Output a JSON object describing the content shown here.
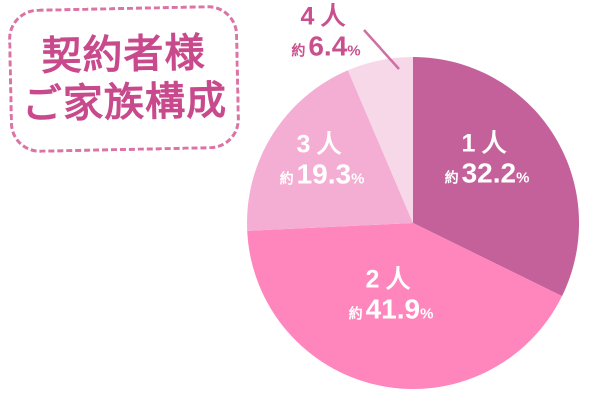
{
  "title": {
    "line1": "契約者様",
    "line2": "ご家族構成"
  },
  "chart_data": {
    "type": "pie",
    "title": "契約者様ご家族構成",
    "approx_prefix": "約",
    "unit": "%",
    "start_angle_deg": 0,
    "direction": "clockwise",
    "legend_position": "none",
    "slices": [
      {
        "label": "1人",
        "value": 32.2,
        "display_value": "32.2",
        "color": "#c4619b",
        "label_placement": "inside"
      },
      {
        "label": "2人",
        "value": 41.9,
        "display_value": "41.9",
        "color": "#ff86bd",
        "label_placement": "inside"
      },
      {
        "label": "3人",
        "value": 19.3,
        "display_value": "19.3",
        "color": "#f5aed3",
        "label_placement": "inside"
      },
      {
        "label": "4人",
        "value": 6.4,
        "display_value": "6.4",
        "color": "#f6d8e8",
        "label_placement": "outside"
      }
    ]
  },
  "colors": {
    "background": "#ffffff",
    "title_text": "#c84a8c",
    "title_border": "#db74a4",
    "inside_label_text": "#ffffff",
    "outside_label_text": "#c9508f",
    "leader_line": "#cf6fa4"
  }
}
